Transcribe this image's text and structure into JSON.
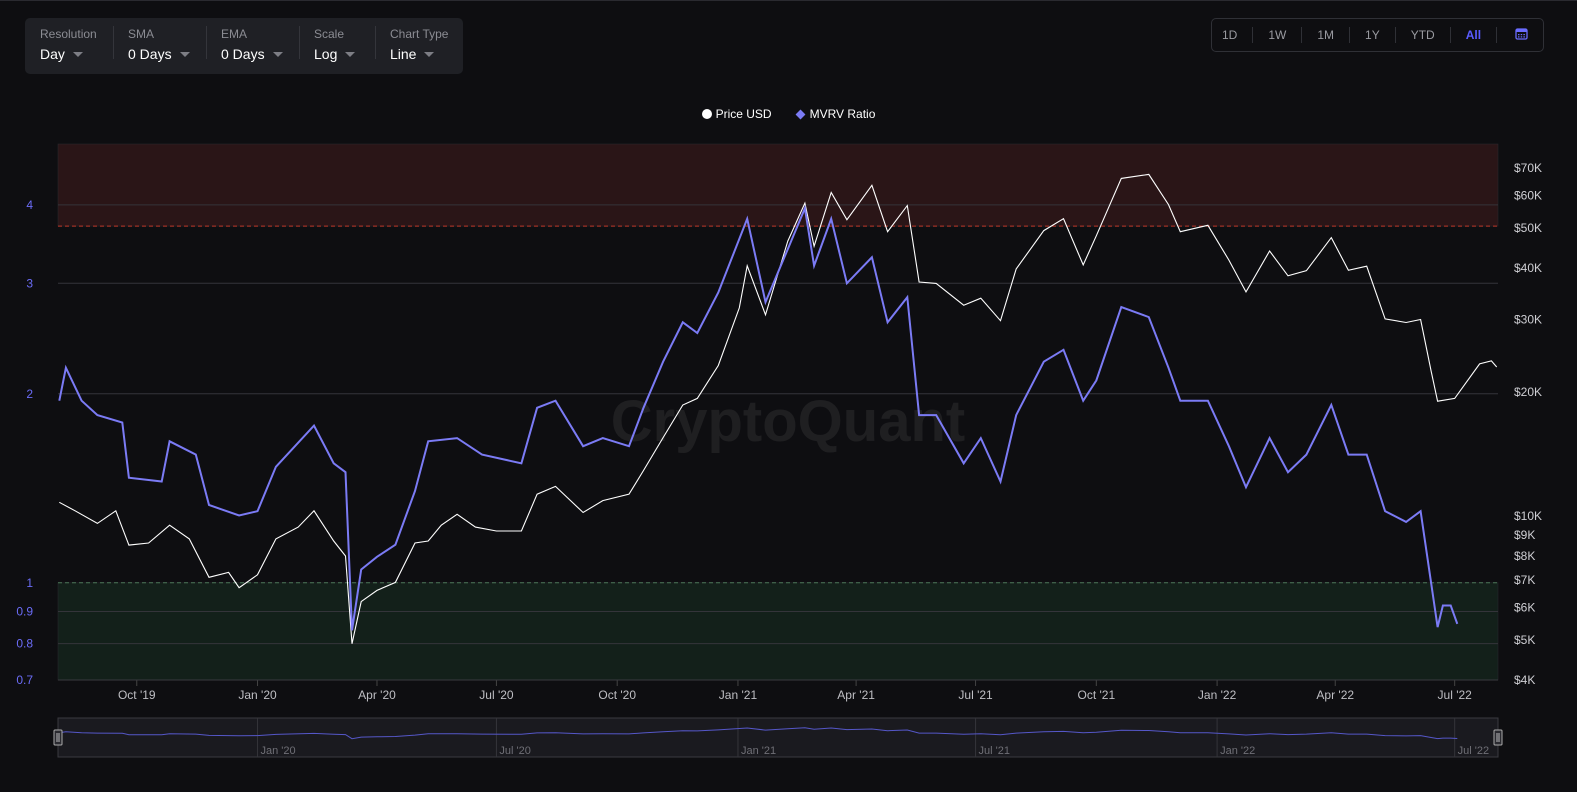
{
  "controls": [
    {
      "label": "Resolution",
      "value": "Day"
    },
    {
      "label": "SMA",
      "value": "0 Days"
    },
    {
      "label": "EMA",
      "value": "0 Days"
    },
    {
      "label": "Scale",
      "value": "Log"
    },
    {
      "label": "Chart Type",
      "value": "Line"
    }
  ],
  "ranges": [
    "1D",
    "1W",
    "1M",
    "1Y",
    "YTD",
    "All"
  ],
  "active_range": "All",
  "calendar_icon": "calendar-icon",
  "watermark": "CryptoQuant",
  "colors": {
    "price": "#ffffff",
    "mvrv": "#7b7bf5",
    "accent": "#5a5cff",
    "overvalued_zone": "#2a1517",
    "undervalued_zone": "#13201a",
    "threshold_line": "#c0392b"
  },
  "chart_data": {
    "type": "line",
    "title": "",
    "legend": [
      "Price USD",
      "MVRV Ratio"
    ],
    "legend_position": "top-center",
    "x_range": [
      "2019-08-02",
      "2022-08-03"
    ],
    "x_ticks": [
      "Oct '19",
      "Jan '20",
      "Apr '20",
      "Jul '20",
      "Oct '20",
      "Jan '21",
      "Apr '21",
      "Jul '21",
      "Oct '21",
      "Jan '22",
      "Apr '22",
      "Jul '22"
    ],
    "x_tick_dates": [
      "2019-10-01",
      "2020-01-01",
      "2020-04-01",
      "2020-07-01",
      "2020-10-01",
      "2021-01-01",
      "2021-04-01",
      "2021-07-01",
      "2021-10-01",
      "2022-01-01",
      "2022-04-01",
      "2022-07-01"
    ],
    "left_axis": {
      "scale": "log",
      "range": [
        0.7,
        5
      ],
      "ticks": [
        "4",
        "3",
        "2",
        "1",
        "0.9",
        "0.8",
        "0.7"
      ],
      "tick_values": [
        4,
        3,
        2,
        1,
        0.9,
        0.8,
        0.7
      ]
    },
    "right_axis": {
      "scale": "log",
      "range": [
        4000,
        80000
      ],
      "ticks": [
        "$70K",
        "$60K",
        "$50K",
        "$40K",
        "$30K",
        "$20K",
        "$10K",
        "$9K",
        "$8K",
        "$7K",
        "$6K",
        "$5K",
        "$4K"
      ],
      "tick_values": [
        70000,
        60000,
        50000,
        40000,
        30000,
        20000,
        10000,
        9000,
        8000,
        7000,
        6000,
        5000,
        4000
      ]
    },
    "zones": [
      {
        "from": 3.7,
        "to": 5,
        "kind": "overvalued"
      },
      {
        "from": 0.7,
        "to": 1,
        "kind": "undervalued"
      }
    ],
    "grid": true,
    "navigator_ticks": [
      "Jan '20",
      "Jul '20",
      "Jan '21",
      "Jul '21",
      "Jan '22",
      "Jul '22"
    ],
    "navigator_tick_dates": [
      "2020-01-01",
      "2020-07-01",
      "2021-01-01",
      "2021-07-01",
      "2022-01-01",
      "2022-07-01"
    ],
    "series": [
      {
        "name": "Price USD",
        "axis": "right",
        "points": [
          [
            "2019-08-03",
            10800
          ],
          [
            "2019-08-15",
            10300
          ],
          [
            "2019-09-01",
            9600
          ],
          [
            "2019-09-15",
            10300
          ],
          [
            "2019-09-25",
            8500
          ],
          [
            "2019-10-10",
            8600
          ],
          [
            "2019-10-26",
            9500
          ],
          [
            "2019-11-10",
            8800
          ],
          [
            "2019-11-25",
            7100
          ],
          [
            "2019-12-10",
            7300
          ],
          [
            "2019-12-18",
            6700
          ],
          [
            "2020-01-01",
            7200
          ],
          [
            "2020-01-15",
            8800
          ],
          [
            "2020-02-01",
            9400
          ],
          [
            "2020-02-13",
            10300
          ],
          [
            "2020-02-28",
            8700
          ],
          [
            "2020-03-08",
            8000
          ],
          [
            "2020-03-13",
            4900
          ],
          [
            "2020-03-20",
            6200
          ],
          [
            "2020-04-01",
            6600
          ],
          [
            "2020-04-15",
            6900
          ],
          [
            "2020-04-30",
            8600
          ],
          [
            "2020-05-10",
            8700
          ],
          [
            "2020-05-20",
            9500
          ],
          [
            "2020-06-01",
            10100
          ],
          [
            "2020-06-15",
            9400
          ],
          [
            "2020-07-01",
            9200
          ],
          [
            "2020-07-20",
            9200
          ],
          [
            "2020-08-01",
            11300
          ],
          [
            "2020-08-15",
            11800
          ],
          [
            "2020-09-05",
            10200
          ],
          [
            "2020-09-20",
            10900
          ],
          [
            "2020-10-10",
            11300
          ],
          [
            "2020-10-21",
            12900
          ],
          [
            "2020-11-05",
            15500
          ],
          [
            "2020-11-20",
            18600
          ],
          [
            "2020-12-01",
            19300
          ],
          [
            "2020-12-17",
            23200
          ],
          [
            "2021-01-02",
            32000
          ],
          [
            "2021-01-08",
            40500
          ],
          [
            "2021-01-22",
            30800
          ],
          [
            "2021-02-08",
            46500
          ],
          [
            "2021-02-21",
            57500
          ],
          [
            "2021-02-28",
            45200
          ],
          [
            "2021-03-13",
            61000
          ],
          [
            "2021-03-25",
            52400
          ],
          [
            "2021-04-13",
            63500
          ],
          [
            "2021-04-25",
            49000
          ],
          [
            "2021-05-10",
            56700
          ],
          [
            "2021-05-19",
            37000
          ],
          [
            "2021-06-01",
            36700
          ],
          [
            "2021-06-22",
            32500
          ],
          [
            "2021-07-05",
            33800
          ],
          [
            "2021-07-20",
            29800
          ],
          [
            "2021-08-01",
            39800
          ],
          [
            "2021-08-22",
            49300
          ],
          [
            "2021-09-06",
            52700
          ],
          [
            "2021-09-21",
            40700
          ],
          [
            "2021-10-01",
            47900
          ],
          [
            "2021-10-20",
            66000
          ],
          [
            "2021-11-10",
            67500
          ],
          [
            "2021-11-25",
            57000
          ],
          [
            "2021-12-04",
            49000
          ],
          [
            "2021-12-25",
            50800
          ],
          [
            "2022-01-10",
            41800
          ],
          [
            "2022-01-23",
            35000
          ],
          [
            "2022-02-10",
            44000
          ],
          [
            "2022-02-24",
            38300
          ],
          [
            "2022-03-10",
            39400
          ],
          [
            "2022-03-29",
            47400
          ],
          [
            "2022-04-11",
            39500
          ],
          [
            "2022-04-25",
            40400
          ],
          [
            "2022-05-09",
            30100
          ],
          [
            "2022-05-25",
            29500
          ],
          [
            "2022-06-05",
            30000
          ],
          [
            "2022-06-13",
            22500
          ],
          [
            "2022-06-18",
            19000
          ],
          [
            "2022-07-01",
            19300
          ],
          [
            "2022-07-20",
            23400
          ],
          [
            "2022-07-29",
            23800
          ],
          [
            "2022-08-02",
            23000
          ]
        ]
      },
      {
        "name": "MVRV Ratio",
        "axis": "left",
        "points": [
          [
            "2019-08-03",
            1.95
          ],
          [
            "2019-08-08",
            2.2
          ],
          [
            "2019-08-20",
            1.95
          ],
          [
            "2019-09-01",
            1.85
          ],
          [
            "2019-09-20",
            1.8
          ],
          [
            "2019-09-25",
            1.47
          ],
          [
            "2019-10-20",
            1.45
          ],
          [
            "2019-10-26",
            1.68
          ],
          [
            "2019-11-15",
            1.6
          ],
          [
            "2019-11-25",
            1.33
          ],
          [
            "2019-12-18",
            1.28
          ],
          [
            "2020-01-01",
            1.3
          ],
          [
            "2020-01-15",
            1.53
          ],
          [
            "2020-02-13",
            1.78
          ],
          [
            "2020-02-28",
            1.55
          ],
          [
            "2020-03-08",
            1.5
          ],
          [
            "2020-03-13",
            0.84
          ],
          [
            "2020-03-20",
            1.05
          ],
          [
            "2020-04-01",
            1.1
          ],
          [
            "2020-04-15",
            1.15
          ],
          [
            "2020-04-30",
            1.4
          ],
          [
            "2020-05-10",
            1.68
          ],
          [
            "2020-06-01",
            1.7
          ],
          [
            "2020-06-20",
            1.6
          ],
          [
            "2020-07-20",
            1.55
          ],
          [
            "2020-08-01",
            1.9
          ],
          [
            "2020-08-15",
            1.95
          ],
          [
            "2020-09-05",
            1.65
          ],
          [
            "2020-09-20",
            1.7
          ],
          [
            "2020-10-10",
            1.65
          ],
          [
            "2020-10-21",
            1.9
          ],
          [
            "2020-11-05",
            2.25
          ],
          [
            "2020-11-20",
            2.6
          ],
          [
            "2020-12-01",
            2.5
          ],
          [
            "2020-12-17",
            2.9
          ],
          [
            "2021-01-08",
            3.8
          ],
          [
            "2021-01-22",
            2.8
          ],
          [
            "2021-02-08",
            3.4
          ],
          [
            "2021-02-21",
            3.95
          ],
          [
            "2021-02-28",
            3.2
          ],
          [
            "2021-03-13",
            3.8
          ],
          [
            "2021-03-25",
            3.0
          ],
          [
            "2021-04-13",
            3.3
          ],
          [
            "2021-04-25",
            2.6
          ],
          [
            "2021-05-10",
            2.85
          ],
          [
            "2021-05-19",
            1.85
          ],
          [
            "2021-06-01",
            1.85
          ],
          [
            "2021-06-22",
            1.55
          ],
          [
            "2021-07-05",
            1.7
          ],
          [
            "2021-07-20",
            1.45
          ],
          [
            "2021-08-01",
            1.85
          ],
          [
            "2021-08-22",
            2.25
          ],
          [
            "2021-09-06",
            2.35
          ],
          [
            "2021-09-21",
            1.95
          ],
          [
            "2021-10-01",
            2.1
          ],
          [
            "2021-10-20",
            2.75
          ],
          [
            "2021-11-10",
            2.65
          ],
          [
            "2021-11-25",
            2.2
          ],
          [
            "2021-12-04",
            1.95
          ],
          [
            "2021-12-25",
            1.95
          ],
          [
            "2022-01-10",
            1.65
          ],
          [
            "2022-01-23",
            1.42
          ],
          [
            "2022-02-10",
            1.7
          ],
          [
            "2022-02-24",
            1.5
          ],
          [
            "2022-03-10",
            1.6
          ],
          [
            "2022-03-29",
            1.92
          ],
          [
            "2022-04-11",
            1.6
          ],
          [
            "2022-04-25",
            1.6
          ],
          [
            "2022-05-09",
            1.3
          ],
          [
            "2022-05-25",
            1.25
          ],
          [
            "2022-06-05",
            1.3
          ],
          [
            "2022-06-13",
            1.0
          ],
          [
            "2022-06-18",
            0.85
          ],
          [
            "2022-06-22",
            0.92
          ],
          [
            "2022-06-28",
            0.92
          ],
          [
            "2022-07-03",
            0.86
          ]
        ]
      }
    ]
  }
}
